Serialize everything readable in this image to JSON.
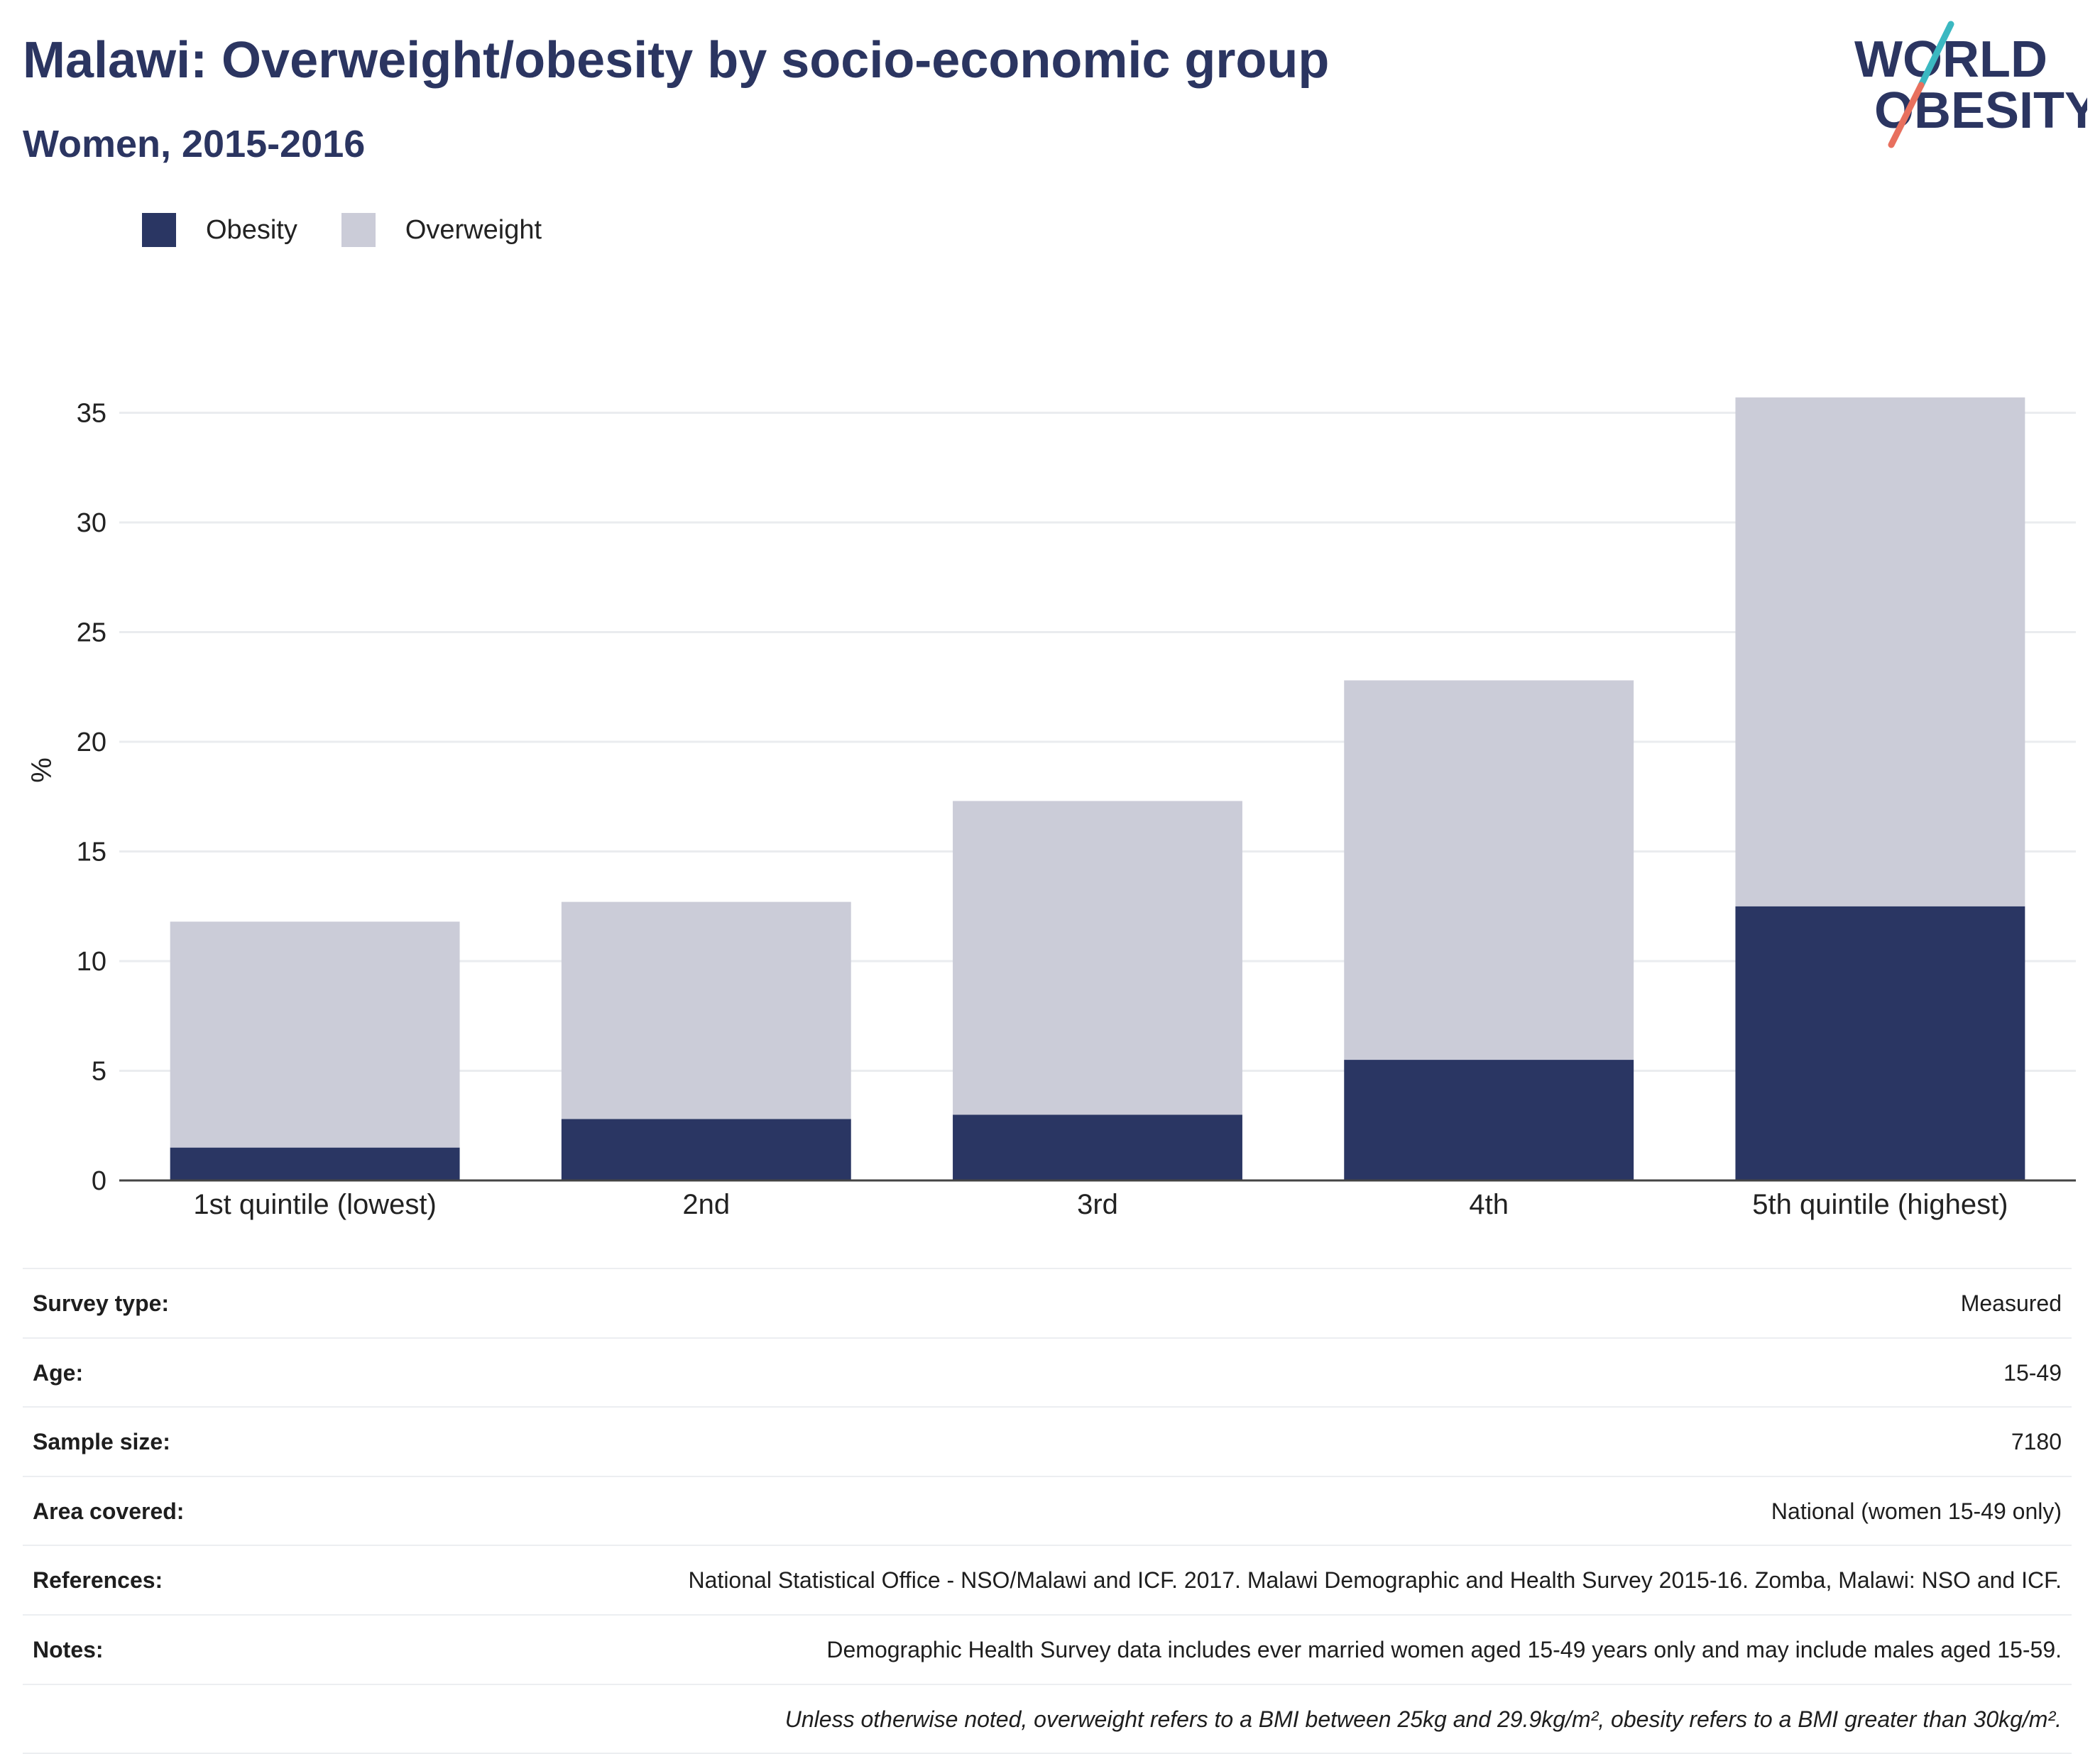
{
  "header": {
    "title": "Malawi: Overweight/obesity by socio-economic group",
    "subtitle": "Women, 2015-2016",
    "logo_text_1": "WORLD",
    "logo_text_2": "OBESITY"
  },
  "colors": {
    "obesity": "#2a3663",
    "overweight": "#cbccd8",
    "title": "#2b3561",
    "logo_teal": "#3bb8c1",
    "logo_coral": "#e8705e"
  },
  "chart_data": {
    "type": "bar",
    "stacked": true,
    "categories": [
      "1st quintile (lowest)",
      "2nd",
      "3rd",
      "4th",
      "5th quintile (highest)"
    ],
    "series": [
      {
        "name": "Obesity",
        "values": [
          1.5,
          2.8,
          3.0,
          5.5,
          12.5
        ]
      },
      {
        "name": "Overweight",
        "values": [
          10.3,
          9.9,
          14.3,
          17.3,
          23.2
        ]
      }
    ],
    "yticks": [
      0,
      5,
      10,
      15,
      20,
      25,
      30,
      35
    ],
    "ylim": [
      0,
      37
    ],
    "ylabel": "%",
    "xlabel": "",
    "legend_position": "top-left",
    "grid": true
  },
  "info": {
    "rows": [
      {
        "label": "Survey type:",
        "value": "Measured"
      },
      {
        "label": "Age:",
        "value": "15-49"
      },
      {
        "label": "Sample size:",
        "value": "7180"
      },
      {
        "label": "Area covered:",
        "value": "National (women 15-49 only)"
      },
      {
        "label": "References:",
        "value": "National Statistical Office - NSO/Malawi and ICF. 2017. Malawi Demographic and Health Survey 2015-16. Zomba, Malawi: NSO and ICF."
      },
      {
        "label": "Notes:",
        "value": "Demographic Health Survey data includes ever married women aged 15-49 years only and may include males aged 15-59."
      },
      {
        "label": "",
        "value": "Unless otherwise noted, overweight refers to a BMI between 25kg and 29.9kg/m², obesity refers to a BMI greater than 30kg/m²."
      }
    ]
  }
}
